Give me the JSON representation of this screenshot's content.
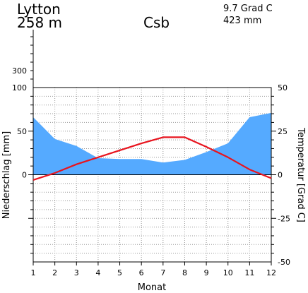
{
  "header": {
    "station": "Lytton",
    "elevation": "258 m",
    "koppen": "Csb",
    "mean_temp": "9.7 Grad C",
    "annual_precip": "423 mm"
  },
  "chart_data": {
    "type": "area",
    "title": "",
    "xlabel": "Monat",
    "ylabel_left": "Niederschlag [mm]",
    "ylabel_right": "Temperatur [Grad C]",
    "categories": [
      "1",
      "2",
      "3",
      "4",
      "5",
      "6",
      "7",
      "8",
      "9",
      "10",
      "11",
      "12"
    ],
    "precip_ylim": [
      -100,
      100
    ],
    "precip_ticks": [
      0,
      50,
      100
    ],
    "precip_extended_ticks": [
      "300"
    ],
    "temp_ylim": [
      -50,
      50
    ],
    "temp_ticks": [
      "-50",
      "-25",
      "0",
      "25",
      "50"
    ],
    "grid": true,
    "series": [
      {
        "type": "area",
        "axis": "left",
        "color": "#55aaff",
        "values": [
          66,
          41,
          33,
          19,
          18,
          18,
          14,
          17,
          26,
          36,
          66,
          71
        ]
      },
      {
        "type": "line",
        "axis": "right",
        "color": "#e8141e",
        "values": [
          -3,
          1,
          6,
          10,
          14,
          18,
          21.5,
          21.5,
          16,
          10,
          3,
          -2
        ]
      }
    ]
  }
}
